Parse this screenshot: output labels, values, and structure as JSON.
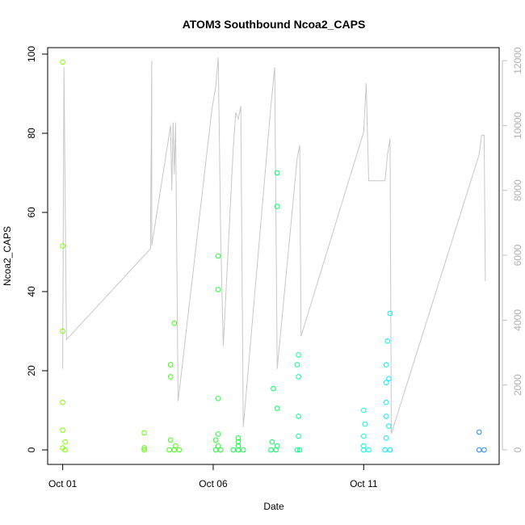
{
  "chart_data": {
    "type": "scatter",
    "title": "ATOM3 Southbound Ncoa2_CAPS",
    "xlabel": "Date",
    "ylabel": "Ncoa2_CAPS",
    "x_unit": "days",
    "xlim": [
      "2014-09-30T12:00",
      "2014-10-15T12:00"
    ],
    "ylim": [
      0,
      100
    ],
    "x_ticks": [
      {
        "value": "2014-10-01T00:00",
        "label": "Oct 01"
      },
      {
        "value": "2014-10-06T00:00",
        "label": "Oct 06"
      },
      {
        "value": "2014-10-11T00:00",
        "label": "Oct 11"
      }
    ],
    "y_ticks": [
      0,
      20,
      40,
      60,
      80,
      100
    ],
    "y2_ticks": [
      0,
      2000,
      4000,
      6000,
      8000,
      10000,
      12000
    ],
    "y2_lim": [
      0,
      12500
    ],
    "y2_color": "#c0c0c0",
    "line_color": "#c8c8c8",
    "points": [
      {
        "x": "2014-10-01T00:00",
        "y": 98,
        "color": "#7fff00"
      },
      {
        "x": "2014-10-01T00:00",
        "y": 51.5,
        "color": "#7fff00"
      },
      {
        "x": "2014-10-01T00:00",
        "y": 30,
        "color": "#7fff00"
      },
      {
        "x": "2014-10-01T00:00",
        "y": 12,
        "color": "#7fff00"
      },
      {
        "x": "2014-10-01T00:00",
        "y": 5,
        "color": "#7fff00"
      },
      {
        "x": "2014-10-01T02:00",
        "y": 2,
        "color": "#7fff00"
      },
      {
        "x": "2014-10-01T00:00",
        "y": 0.5,
        "color": "#7fff00"
      },
      {
        "x": "2014-10-01T02:00",
        "y": 0,
        "color": "#7fff00"
      },
      {
        "x": "2014-10-03T17:00",
        "y": 4.3,
        "color": "#5cff00"
      },
      {
        "x": "2014-10-03T17:00",
        "y": 0.5,
        "color": "#5cff00"
      },
      {
        "x": "2014-10-03T17:00",
        "y": 0,
        "color": "#5cff00"
      },
      {
        "x": "2014-10-04T17:00",
        "y": 32,
        "color": "#40ff10"
      },
      {
        "x": "2014-10-04T14:00",
        "y": 21.5,
        "color": "#40ff10"
      },
      {
        "x": "2014-10-04T14:00",
        "y": 18.5,
        "color": "#40ff10"
      },
      {
        "x": "2014-10-04T14:00",
        "y": 2.5,
        "color": "#40ff10"
      },
      {
        "x": "2014-10-04T18:00",
        "y": 1,
        "color": "#40ff10"
      },
      {
        "x": "2014-10-04T13:00",
        "y": 0,
        "color": "#40ff10"
      },
      {
        "x": "2014-10-04T17:00",
        "y": 0,
        "color": "#40ff10"
      },
      {
        "x": "2014-10-04T21:00",
        "y": 0,
        "color": "#40ff10"
      },
      {
        "x": "2014-10-06T04:00",
        "y": 49,
        "color": "#20ff30"
      },
      {
        "x": "2014-10-06T04:00",
        "y": 40.5,
        "color": "#20ff30"
      },
      {
        "x": "2014-10-06T04:00",
        "y": 13,
        "color": "#20ff30"
      },
      {
        "x": "2014-10-06T04:00",
        "y": 4,
        "color": "#20ff30"
      },
      {
        "x": "2014-10-06T02:00",
        "y": 2.5,
        "color": "#20ff30"
      },
      {
        "x": "2014-10-06T04:00",
        "y": 1,
        "color": "#20ff30"
      },
      {
        "x": "2014-10-06T02:00",
        "y": 0,
        "color": "#20ff30"
      },
      {
        "x": "2014-10-06T06:00",
        "y": 0,
        "color": "#20ff30"
      },
      {
        "x": "2014-10-06T20:00",
        "y": 3,
        "color": "#10ff40"
      },
      {
        "x": "2014-10-06T20:00",
        "y": 2,
        "color": "#10ff40"
      },
      {
        "x": "2014-10-06T20:00",
        "y": 1,
        "color": "#10ff40"
      },
      {
        "x": "2014-10-06T16:00",
        "y": 0,
        "color": "#10ff40"
      },
      {
        "x": "2014-10-06T20:00",
        "y": 0,
        "color": "#10ff40"
      },
      {
        "x": "2014-10-07T00:00",
        "y": 0,
        "color": "#10ff40"
      },
      {
        "x": "2014-10-08T03:00",
        "y": 70,
        "color": "#00ff60"
      },
      {
        "x": "2014-10-08T03:00",
        "y": 61.5,
        "color": "#00ff60"
      },
      {
        "x": "2014-10-08T00:00",
        "y": 15.5,
        "color": "#00ff60"
      },
      {
        "x": "2014-10-08T03:00",
        "y": 10.5,
        "color": "#00ff60"
      },
      {
        "x": "2014-10-07T23:00",
        "y": 2,
        "color": "#00ff60"
      },
      {
        "x": "2014-10-08T03:00",
        "y": 1,
        "color": "#00ff60"
      },
      {
        "x": "2014-10-07T22:00",
        "y": 0,
        "color": "#00ff60"
      },
      {
        "x": "2014-10-08T02:00",
        "y": 0,
        "color": "#00ff60"
      },
      {
        "x": "2014-10-08T20:00",
        "y": 24,
        "color": "#00ff90"
      },
      {
        "x": "2014-10-08T19:00",
        "y": 21.5,
        "color": "#00ff90"
      },
      {
        "x": "2014-10-08T20:00",
        "y": 18.5,
        "color": "#00ff90"
      },
      {
        "x": "2014-10-08T20:00",
        "y": 8.5,
        "color": "#00ff90"
      },
      {
        "x": "2014-10-08T20:00",
        "y": 3.5,
        "color": "#00ff90"
      },
      {
        "x": "2014-10-08T19:00",
        "y": 0,
        "color": "#00ff90"
      },
      {
        "x": "2014-10-08T21:00",
        "y": 0,
        "color": "#00ff90"
      },
      {
        "x": "2014-10-11T00:00",
        "y": 10,
        "color": "#00ffe0"
      },
      {
        "x": "2014-10-11T01:00",
        "y": 6.5,
        "color": "#00ffe0"
      },
      {
        "x": "2014-10-11T00:00",
        "y": 3.5,
        "color": "#00ffe0"
      },
      {
        "x": "2014-10-11T00:00",
        "y": 1,
        "color": "#00ffe0"
      },
      {
        "x": "2014-10-11T00:00",
        "y": 0,
        "color": "#00ffe0"
      },
      {
        "x": "2014-10-11T04:00",
        "y": 0,
        "color": "#00ffe0"
      },
      {
        "x": "2014-10-11T21:00",
        "y": 34.5,
        "color": "#00f0ff"
      },
      {
        "x": "2014-10-11T19:00",
        "y": 27.5,
        "color": "#00f0ff"
      },
      {
        "x": "2014-10-11T18:00",
        "y": 21.5,
        "color": "#00f0ff"
      },
      {
        "x": "2014-10-11T20:00",
        "y": 18,
        "color": "#00f0ff"
      },
      {
        "x": "2014-10-11T18:00",
        "y": 17,
        "color": "#00f0ff"
      },
      {
        "x": "2014-10-11T18:00",
        "y": 12,
        "color": "#00f0ff"
      },
      {
        "x": "2014-10-11T18:00",
        "y": 8.5,
        "color": "#00f0ff"
      },
      {
        "x": "2014-10-11T20:00",
        "y": 6,
        "color": "#00f0ff"
      },
      {
        "x": "2014-10-11T18:00",
        "y": 3,
        "color": "#00f0ff"
      },
      {
        "x": "2014-10-11T17:00",
        "y": 0,
        "color": "#00f0ff"
      },
      {
        "x": "2014-10-11T21:00",
        "y": 0,
        "color": "#00f0ff"
      },
      {
        "x": "2014-10-14T20:00",
        "y": 4.5,
        "color": "#1e90ff"
      },
      {
        "x": "2014-10-14T20:00",
        "y": 0,
        "color": "#1e90ff"
      },
      {
        "x": "2014-10-15T00:00",
        "y": 0,
        "color": "#1e90ff"
      }
    ],
    "line_series": [
      {
        "x": "2014-10-01T00:00",
        "y2": 2500
      },
      {
        "x": "2014-10-01T01:00",
        "y2": 11800
      },
      {
        "x": "2014-10-01T03:00",
        "y2": 3400
      },
      {
        "x": "2014-10-03T22:00",
        "y2": 6200
      },
      {
        "x": "2014-10-03T23:00",
        "y2": 12000
      },
      {
        "x": "2014-10-03T23:00",
        "y2": 6300
      },
      {
        "x": "2014-10-04T14:00",
        "y2": 10000
      },
      {
        "x": "2014-10-04T15:00",
        "y2": 8000
      },
      {
        "x": "2014-10-04T16:00",
        "y2": 10100
      },
      {
        "x": "2014-10-04T17:00",
        "y2": 8500
      },
      {
        "x": "2014-10-04T18:00",
        "y2": 10100
      },
      {
        "x": "2014-10-04T20:00",
        "y2": 1500
      },
      {
        "x": "2014-10-05T23:00",
        "y2": 10500
      },
      {
        "x": "2014-10-06T02:00",
        "y2": 11200
      },
      {
        "x": "2014-10-06T04:00",
        "y2": 12100
      },
      {
        "x": "2014-10-06T06:00",
        "y2": 6500
      },
      {
        "x": "2014-10-06T08:00",
        "y2": 3200
      },
      {
        "x": "2014-10-06T16:00",
        "y2": 9300
      },
      {
        "x": "2014-10-06T18:00",
        "y2": 10400
      },
      {
        "x": "2014-10-06T20:00",
        "y2": 10200
      },
      {
        "x": "2014-10-06T22:00",
        "y2": 10600
      },
      {
        "x": "2014-10-07T00:00",
        "y2": 700
      },
      {
        "x": "2014-10-07T22:00",
        "y2": 10600
      },
      {
        "x": "2014-10-08T01:00",
        "y2": 11800
      },
      {
        "x": "2014-10-08T03:00",
        "y2": 2500
      },
      {
        "x": "2014-10-08T19:00",
        "y2": 9000
      },
      {
        "x": "2014-10-08T21:00",
        "y2": 9400
      },
      {
        "x": "2014-10-08T22:00",
        "y2": 3500
      },
      {
        "x": "2014-10-11T00:00",
        "y2": 9800
      },
      {
        "x": "2014-10-11T02:00",
        "y2": 11300
      },
      {
        "x": "2014-10-11T04:00",
        "y2": 8300
      },
      {
        "x": "2014-10-11T17:00",
        "y2": 8300
      },
      {
        "x": "2014-10-11T19:00",
        "y2": 9100
      },
      {
        "x": "2014-10-11T21:00",
        "y2": 9600
      },
      {
        "x": "2014-10-11T22:00",
        "y2": 500
      },
      {
        "x": "2014-10-14T20:00",
        "y2": 9100
      },
      {
        "x": "2014-10-14T22:00",
        "y2": 9700
      },
      {
        "x": "2014-10-15T00:00",
        "y2": 9700
      },
      {
        "x": "2014-10-15T01:00",
        "y2": 5200
      }
    ]
  }
}
